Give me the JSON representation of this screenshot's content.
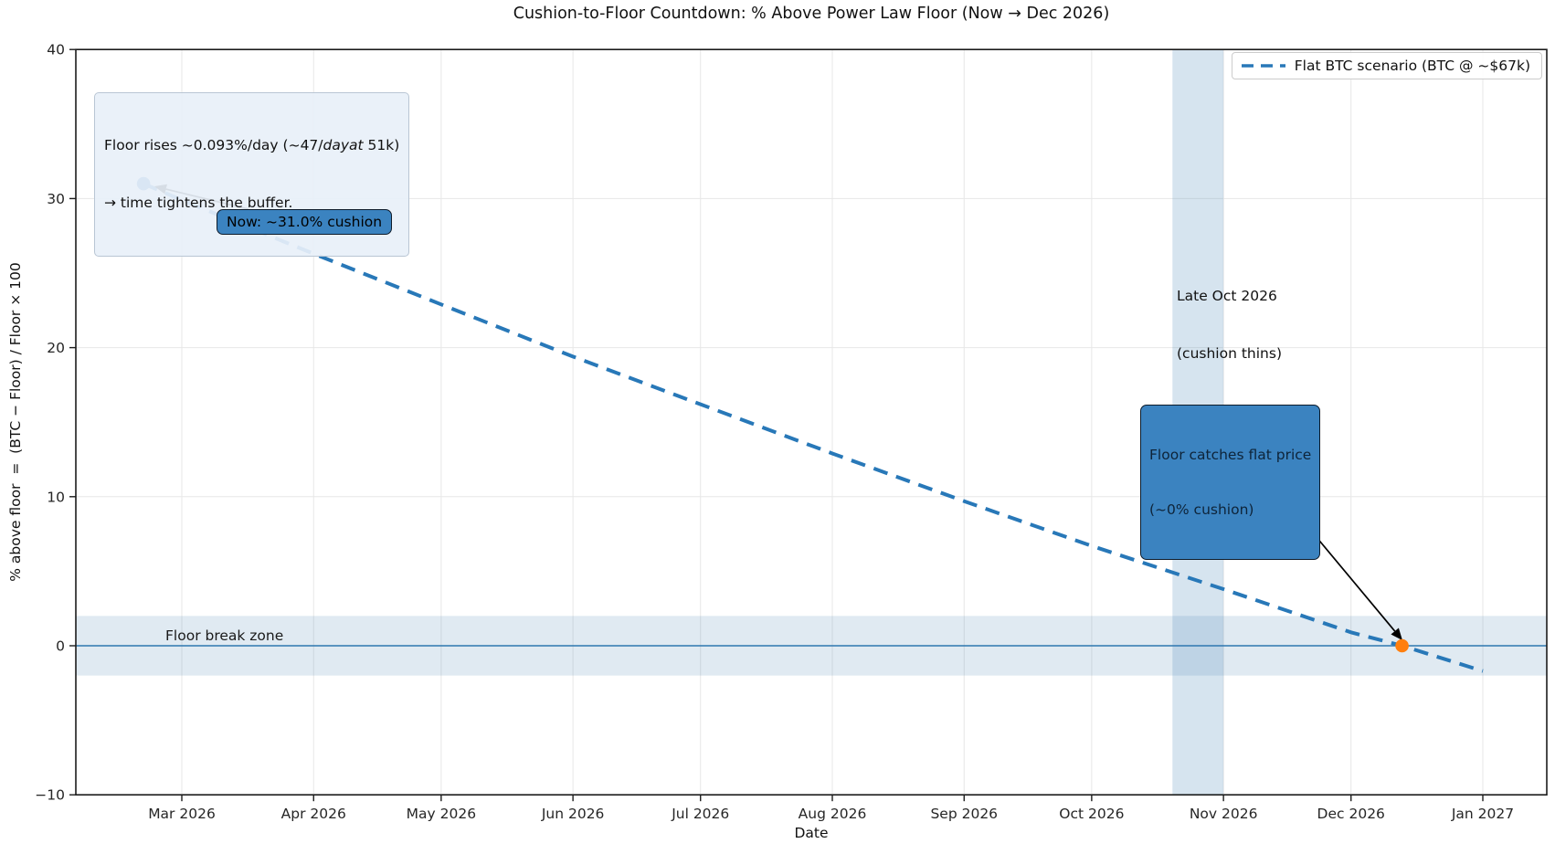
{
  "chart_data": {
    "type": "line",
    "title": "Cushion-to-Floor Countdown: % Above Power Law Floor (Now → Dec 2026)",
    "xlabel": "Date",
    "ylabel": "% above floor  =  (BTC − Floor) / Floor × 100",
    "ylim": [
      -10,
      40
    ],
    "grid": true,
    "legend_position": "upper right",
    "y_ticks": [
      {
        "label": "40",
        "v": 40
      },
      {
        "label": "30",
        "v": 30
      },
      {
        "label": "20",
        "v": 20
      },
      {
        "label": "10",
        "v": 10
      },
      {
        "label": "0",
        "v": 0
      },
      {
        "label": "−10",
        "v": -10
      }
    ],
    "x_ticks": [
      {
        "label": "Mar 2026",
        "t": 9
      },
      {
        "label": "Apr 2026",
        "t": 40
      },
      {
        "label": "May 2026",
        "t": 70
      },
      {
        "label": "Jun 2026",
        "t": 101
      },
      {
        "label": "Jul 2026",
        "t": 131
      },
      {
        "label": "Aug 2026",
        "t": 162
      },
      {
        "label": "Sep 2026",
        "t": 193
      },
      {
        "label": "Oct 2026",
        "t": 223
      },
      {
        "label": "Nov 2026",
        "t": 254
      },
      {
        "label": "Dec 2026",
        "t": 284
      },
      {
        "label": "Jan 2027",
        "t": 315
      }
    ],
    "series": [
      {
        "name": "Flat BTC scenario (BTC @ ~$67k)",
        "style": "dashed",
        "color": "#2878b8",
        "points": [
          {
            "date": "2026-02-20",
            "t": 0,
            "pct": 31.0
          },
          {
            "date": "2026-03-01",
            "t": 9,
            "pct": 29.9
          },
          {
            "date": "2026-04-01",
            "t": 40,
            "pct": 26.3
          },
          {
            "date": "2026-05-01",
            "t": 70,
            "pct": 22.9
          },
          {
            "date": "2026-06-01",
            "t": 101,
            "pct": 19.4
          },
          {
            "date": "2026-07-01",
            "t": 131,
            "pct": 16.2
          },
          {
            "date": "2026-08-01",
            "t": 162,
            "pct": 12.9
          },
          {
            "date": "2026-09-01",
            "t": 193,
            "pct": 9.7
          },
          {
            "date": "2026-10-01",
            "t": 223,
            "pct": 6.7
          },
          {
            "date": "2026-11-01",
            "t": 254,
            "pct": 3.8
          },
          {
            "date": "2026-12-01",
            "t": 284,
            "pct": 0.9
          },
          {
            "date": "2026-12-13",
            "t": 296,
            "pct": 0.0
          },
          {
            "date": "2027-01-01",
            "t": 315,
            "pct": -1.7
          }
        ]
      }
    ],
    "markers": [
      {
        "name": "now-point",
        "date": "2026-02-20",
        "t": 0,
        "pct": 31.0,
        "color": "#2878b8"
      },
      {
        "name": "zero-cross-point",
        "date": "2026-12-13",
        "t": 296,
        "pct": 0.0,
        "color": "#ff7f0e"
      }
    ],
    "zero_line": {
      "v": 0,
      "color": "#2e77b0"
    },
    "floor_break_zone": {
      "from_pct": -2,
      "to_pct": 2,
      "color": "rgba(70,130,180,0.17)"
    },
    "highlight_band": {
      "from_t": 242,
      "to_t": 254,
      "from_date": "2026-10-20",
      "to_date": "2026-11-01",
      "color": "rgba(70,130,180,0.22)"
    }
  },
  "annotations": {
    "floor_rises_line1_prefix": "Floor rises ~0.093%/day (~47/",
    "floor_rises_line1_italic": "dayat",
    "floor_rises_line1_suffix": " 51k)",
    "floor_rises_line2": "→ time tightens the buffer.",
    "now_label": "Now: ~31.0% cushion",
    "floor_catches_line1": "Floor catches flat price",
    "floor_catches_line2": "(~0% cushion)",
    "late_oct_line1": "Late Oct 2026",
    "late_oct_line2": "(cushion thins)",
    "floor_break_zone_label": "Floor break zone"
  },
  "colors": {
    "series_blue": "#2878b8",
    "marker_orange": "#ff7f0e",
    "grid": "#e7e7e7",
    "spine": "#1c1c1c",
    "callout_fill": "#3b83c0",
    "callout_border": "#0d1b2a",
    "note_fill": "rgba(232,240,248,0.92)"
  }
}
